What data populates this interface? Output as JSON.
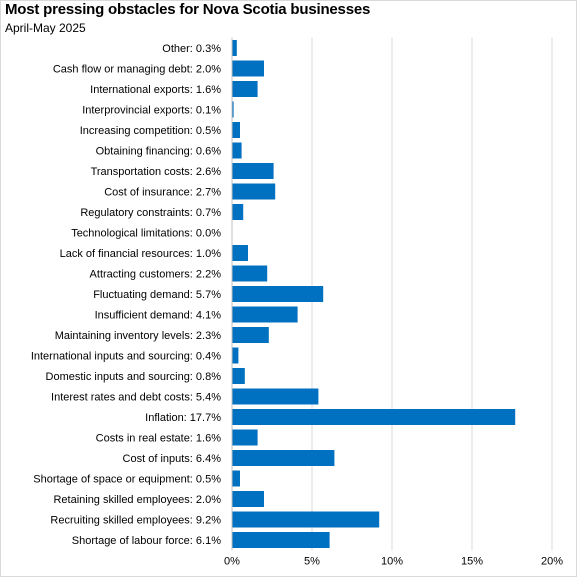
{
  "chart_data": {
    "type": "bar",
    "orientation": "horizontal",
    "title": "Most pressing obstacles for Nova Scotia businesses",
    "subtitle": "April-May 2025",
    "categories": [
      "Other: 0.3%",
      "Cash flow or managing debt: 2.0%",
      "International exports: 1.6%",
      "Interprovincial exports: 0.1%",
      "Increasing competition: 0.5%",
      "Obtaining financing: 0.6%",
      "Transportation costs: 2.6%",
      "Cost of insurance: 2.7%",
      "Regulatory constraints: 0.7%",
      "Technological limitations: 0.0%",
      "Lack of financial resources: 1.0%",
      "Attracting customers: 2.2%",
      "Fluctuating demand: 5.7%",
      "Insufficient demand: 4.1%",
      "Maintaining inventory levels: 2.3%",
      "International inputs and sourcing: 0.4%",
      "Domestic inputs and sourcing: 0.8%",
      "Interest rates and debt costs: 5.4%",
      "Inflation: 17.7%",
      "Costs in real estate: 1.6%",
      "Cost of inputs: 6.4%",
      "Shortage of space or equipment: 0.5%",
      "Retaining skilled employees: 2.0%",
      "Recruiting skilled employees: 9.2%",
      "Shortage of labour force: 6.1%"
    ],
    "values": [
      0.3,
      2.0,
      1.6,
      0.1,
      0.5,
      0.6,
      2.6,
      2.7,
      0.7,
      0.0,
      1.0,
      2.2,
      5.7,
      4.1,
      2.3,
      0.4,
      0.8,
      5.4,
      17.7,
      1.6,
      6.4,
      0.5,
      2.0,
      9.2,
      6.1
    ],
    "x_ticks": [
      "0%",
      "5%",
      "10%",
      "15%",
      "20%"
    ],
    "xlim": [
      0,
      20
    ],
    "unit": "%",
    "bar_color": "#0070c0",
    "grid": true,
    "legend": "none"
  }
}
